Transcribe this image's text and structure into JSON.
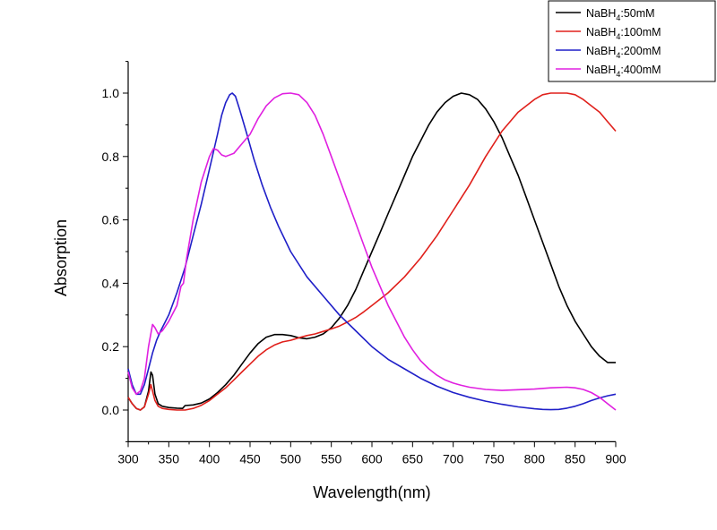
{
  "chart_data": {
    "type": "line",
    "title": "",
    "xlabel": "Wavelength(nm)",
    "ylabel": "Absorption",
    "xlim": [
      300,
      900
    ],
    "ylim": [
      -0.1,
      1.1
    ],
    "xticks": [
      300,
      350,
      400,
      450,
      500,
      550,
      600,
      650,
      700,
      750,
      800,
      850,
      900
    ],
    "xtick_labels": [
      "300",
      "350",
      "400",
      "450",
      "500",
      "550",
      "600",
      "650",
      "700",
      "750",
      "800",
      "850",
      "900"
    ],
    "yticks": [
      0.0,
      0.2,
      0.4,
      0.6,
      0.8,
      1.0
    ],
    "ytick_labels": [
      "0.0",
      "0.2",
      "0.4",
      "0.6",
      "0.8",
      "1.0"
    ],
    "grid": false,
    "legend_position": "top-right",
    "series": [
      {
        "name": "NaBH4:50mM",
        "label_base": "NaBH",
        "label_sub": "4",
        "label_rest": ":50mM",
        "color": "#000000",
        "x": [
          300,
          305,
          310,
          315,
          320,
          325,
          328,
          330,
          333,
          337,
          342,
          350,
          360,
          367,
          370,
          380,
          390,
          400,
          410,
          420,
          430,
          440,
          450,
          460,
          470,
          480,
          490,
          500,
          510,
          520,
          530,
          540,
          550,
          560,
          570,
          580,
          590,
          600,
          610,
          620,
          630,
          640,
          650,
          660,
          670,
          680,
          690,
          700,
          710,
          720,
          730,
          740,
          750,
          760,
          770,
          780,
          790,
          800,
          810,
          820,
          830,
          840,
          850,
          860,
          870,
          880,
          890,
          900
        ],
        "y": [
          0.04,
          0.02,
          0.005,
          0.0,
          0.01,
          0.06,
          0.12,
          0.11,
          0.05,
          0.02,
          0.012,
          0.008,
          0.006,
          0.005,
          0.014,
          0.016,
          0.022,
          0.035,
          0.055,
          0.08,
          0.11,
          0.145,
          0.18,
          0.21,
          0.23,
          0.238,
          0.238,
          0.235,
          0.228,
          0.225,
          0.23,
          0.24,
          0.26,
          0.29,
          0.33,
          0.38,
          0.44,
          0.5,
          0.56,
          0.62,
          0.68,
          0.74,
          0.8,
          0.85,
          0.9,
          0.94,
          0.97,
          0.99,
          1.0,
          0.995,
          0.98,
          0.95,
          0.91,
          0.86,
          0.8,
          0.74,
          0.67,
          0.6,
          0.53,
          0.46,
          0.39,
          0.33,
          0.28,
          0.24,
          0.2,
          0.17,
          0.15,
          0.15
        ]
      },
      {
        "name": "NaBH4:100mM",
        "label_base": "NaBH",
        "label_sub": "4",
        "label_rest": ":100mM",
        "color": "#e0201b",
        "x": [
          300,
          305,
          310,
          315,
          320,
          325,
          328,
          330,
          333,
          337,
          342,
          350,
          360,
          370,
          380,
          390,
          400,
          410,
          420,
          430,
          440,
          450,
          460,
          470,
          480,
          490,
          500,
          510,
          520,
          530,
          540,
          550,
          560,
          570,
          580,
          590,
          600,
          620,
          640,
          660,
          680,
          700,
          720,
          740,
          760,
          780,
          800,
          810,
          820,
          830,
          840,
          850,
          860,
          870,
          880,
          890,
          900
        ],
        "y": [
          0.04,
          0.02,
          0.005,
          0.0,
          0.01,
          0.05,
          0.08,
          0.06,
          0.03,
          0.012,
          0.005,
          0.002,
          0.0,
          0.0,
          0.005,
          0.015,
          0.03,
          0.05,
          0.07,
          0.095,
          0.12,
          0.145,
          0.17,
          0.19,
          0.205,
          0.215,
          0.22,
          0.228,
          0.235,
          0.24,
          0.248,
          0.256,
          0.265,
          0.278,
          0.292,
          0.31,
          0.33,
          0.37,
          0.42,
          0.48,
          0.55,
          0.63,
          0.71,
          0.8,
          0.88,
          0.94,
          0.98,
          0.995,
          1.0,
          1.0,
          1.0,
          0.995,
          0.98,
          0.96,
          0.94,
          0.91,
          0.88
        ]
      },
      {
        "name": "NaBH4:200mM",
        "label_base": "NaBH",
        "label_sub": "4",
        "label_rest": ":200mM",
        "color": "#1f1fc8",
        "x": [
          300,
          305,
          310,
          315,
          320,
          325,
          330,
          335,
          340,
          350,
          360,
          370,
          380,
          390,
          400,
          410,
          415,
          420,
          425,
          428,
          432,
          437,
          445,
          455,
          465,
          475,
          485,
          500,
          520,
          540,
          560,
          580,
          600,
          620,
          640,
          660,
          680,
          700,
          720,
          740,
          760,
          780,
          800,
          810,
          820,
          830,
          840,
          850,
          860,
          870,
          880,
          890,
          900
        ],
        "y": [
          0.13,
          0.08,
          0.05,
          0.05,
          0.08,
          0.13,
          0.18,
          0.22,
          0.25,
          0.3,
          0.37,
          0.45,
          0.55,
          0.65,
          0.76,
          0.87,
          0.93,
          0.97,
          0.995,
          1.0,
          0.99,
          0.95,
          0.88,
          0.79,
          0.71,
          0.64,
          0.58,
          0.5,
          0.42,
          0.36,
          0.3,
          0.25,
          0.2,
          0.16,
          0.13,
          0.1,
          0.075,
          0.055,
          0.04,
          0.028,
          0.018,
          0.01,
          0.004,
          0.002,
          0.001,
          0.002,
          0.006,
          0.012,
          0.02,
          0.03,
          0.038,
          0.045,
          0.05
        ]
      },
      {
        "name": "NaBH4:400mM",
        "label_base": "NaBH",
        "label_sub": "4",
        "label_rest": ":400mM",
        "color": "#e020e0",
        "x": [
          300,
          305,
          310,
          315,
          320,
          325,
          330,
          333,
          337,
          342,
          350,
          360,
          365,
          368,
          372,
          380,
          390,
          400,
          405,
          410,
          415,
          420,
          430,
          440,
          450,
          460,
          470,
          480,
          490,
          500,
          510,
          520,
          530,
          540,
          550,
          560,
          570,
          580,
          590,
          600,
          610,
          620,
          630,
          640,
          650,
          660,
          670,
          680,
          690,
          700,
          710,
          720,
          740,
          760,
          780,
          800,
          820,
          840,
          850,
          860,
          870,
          880,
          890,
          900
        ],
        "y": [
          0.12,
          0.07,
          0.05,
          0.06,
          0.1,
          0.2,
          0.27,
          0.26,
          0.24,
          0.25,
          0.28,
          0.33,
          0.39,
          0.4,
          0.48,
          0.6,
          0.72,
          0.8,
          0.825,
          0.82,
          0.805,
          0.8,
          0.81,
          0.84,
          0.87,
          0.92,
          0.96,
          0.985,
          0.998,
          1.0,
          0.995,
          0.97,
          0.93,
          0.87,
          0.8,
          0.73,
          0.66,
          0.59,
          0.52,
          0.45,
          0.39,
          0.33,
          0.28,
          0.23,
          0.19,
          0.155,
          0.13,
          0.11,
          0.095,
          0.085,
          0.078,
          0.072,
          0.065,
          0.062,
          0.064,
          0.066,
          0.07,
          0.072,
          0.07,
          0.065,
          0.055,
          0.04,
          0.02,
          0.0
        ]
      }
    ]
  }
}
